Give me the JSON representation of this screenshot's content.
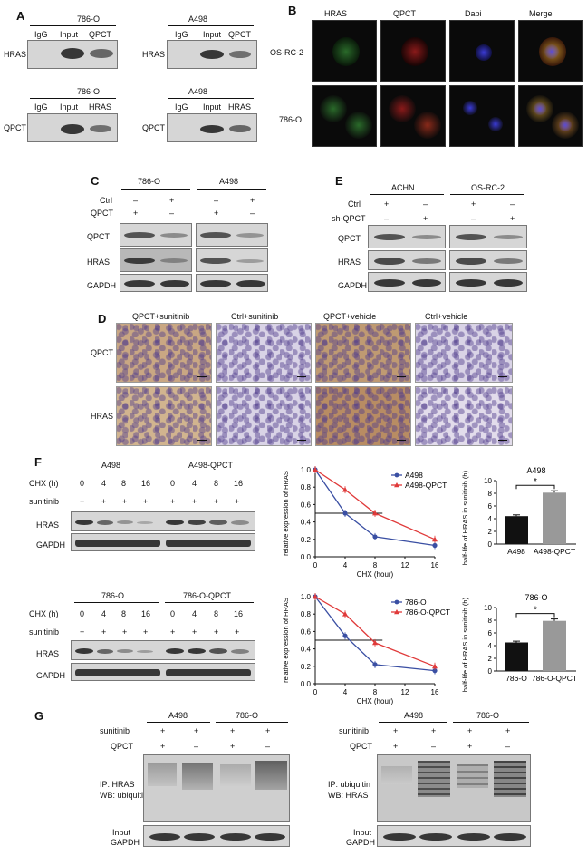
{
  "panel_labels": {
    "A": "A",
    "B": "B",
    "C": "C",
    "D": "D",
    "E": "E",
    "F": "F",
    "G": "G"
  },
  "panelA": {
    "tl": {
      "cell": "786-O",
      "lanes": [
        "IgG",
        "Input",
        "QPCT"
      ],
      "blot": "HRAS"
    },
    "tr": {
      "cell": "A498",
      "lanes": [
        "IgG",
        "Input",
        "QPCT"
      ],
      "blot": "HRAS"
    },
    "bl": {
      "cell": "786-O",
      "lanes": [
        "IgG",
        "Input",
        "HRAS"
      ],
      "blot": "QPCT"
    },
    "br": {
      "cell": "A498",
      "lanes": [
        "IgG",
        "Input",
        "HRAS"
      ],
      "blot": "QPCT"
    }
  },
  "panelB": {
    "columns": [
      "HRAS",
      "QPCT",
      "Dapi",
      "Merge"
    ],
    "rows": [
      "OS-RC-2",
      "786-O"
    ]
  },
  "panelC": {
    "groups": [
      "786-O",
      "A498"
    ],
    "row_labels": [
      "Ctrl",
      "QPCT"
    ],
    "row_signs": [
      [
        "–",
        "+",
        "–",
        "+"
      ],
      [
        "+",
        "–",
        "+",
        "–"
      ]
    ],
    "blots": [
      "QPCT",
      "HRAS",
      "GAPDH"
    ]
  },
  "panelE": {
    "groups": [
      "ACHN",
      "OS-RC-2"
    ],
    "row_labels": [
      "Ctrl",
      "sh-QPCT"
    ],
    "row_signs": [
      [
        "+",
        "–",
        "+",
        "–"
      ],
      [
        "–",
        "+",
        "–",
        "+"
      ]
    ],
    "blots": [
      "QPCT",
      "HRAS",
      "GAPDH"
    ]
  },
  "panelD": {
    "columns": [
      "QPCT+sunitinib",
      "Ctrl+sunitinib",
      "QPCT+vehicle",
      "Ctrl+vehicle"
    ],
    "rows": [
      "QPCT",
      "HRAS"
    ]
  },
  "panelF": {
    "top": {
      "groups": [
        "A498",
        "A498-QPCT"
      ],
      "chx_label": "CHX (h)",
      "chx": [
        "0",
        "4",
        "8",
        "16",
        "0",
        "4",
        "8",
        "16"
      ],
      "sun_label": "sunitinib",
      "sun": [
        "+",
        "+",
        "+",
        "+",
        "+",
        "+",
        "+",
        "+"
      ],
      "blots": [
        "HRAS",
        "GAPDH"
      ]
    },
    "bottom": {
      "groups": [
        "786-O",
        "786-O-QPCT"
      ],
      "chx_label": "CHX (h)",
      "chx": [
        "0",
        "4",
        "8",
        "16",
        "0",
        "4",
        "8",
        "16"
      ],
      "sun_label": "sunitinib",
      "sun": [
        "+",
        "+",
        "+",
        "+",
        "+",
        "+",
        "+",
        "+"
      ],
      "blots": [
        "HRAS",
        "GAPDH"
      ]
    }
  },
  "panelG": {
    "left": {
      "groups": [
        "A498",
        "786-O"
      ],
      "row_labels": [
        "sunitinib",
        "QPCT"
      ],
      "row_signs": [
        [
          "+",
          "+",
          "+",
          "+"
        ],
        [
          "+",
          "–",
          "+",
          "–"
        ]
      ],
      "ip": "IP: HRAS",
      "wb": "WB: ubiquitin",
      "input_l1": "Input",
      "input_l2": "GAPDH"
    },
    "right": {
      "groups": [
        "A498",
        "786-O"
      ],
      "row_labels": [
        "sunitinib",
        "QPCT"
      ],
      "row_signs": [
        [
          "+",
          "+",
          "+",
          "+"
        ],
        [
          "+",
          "–",
          "+",
          "–"
        ]
      ],
      "ip": "IP: ubiquitin",
      "wb": "WB: HRAS",
      "input_l1": "Input",
      "input_l2": "GAPDH"
    }
  },
  "colors": {
    "blue": "#3a4fa3",
    "red": "#e03a3a",
    "bar_black": "#111111",
    "bar_gray": "#999999"
  },
  "chart_data": [
    {
      "type": "line",
      "xlabel": "CHX (hour)",
      "ylabel": "relative expression of HRAS",
      "x": [
        0,
        4,
        8,
        16
      ],
      "xticks": [
        "0",
        "4",
        "8",
        "12",
        "16"
      ],
      "yticks": [
        "0.0",
        "0.2",
        "0.4",
        "0.6",
        "0.8",
        "1.0"
      ],
      "xlim": [
        0,
        16
      ],
      "ylim": [
        0,
        1.0
      ],
      "halfline": 0.5,
      "series": [
        {
          "name": "A498",
          "values": [
            1.0,
            0.5,
            0.23,
            0.13
          ],
          "color": "#3a4fa3",
          "marker": "circle"
        },
        {
          "name": "A498-QPCT",
          "values": [
            1.0,
            0.77,
            0.5,
            0.2
          ],
          "color": "#e03a3a",
          "marker": "triangle"
        }
      ]
    },
    {
      "type": "bar",
      "title": "A498",
      "ylabel": "half-life of HRAS in sunitinib (h)",
      "categories": [
        "A498",
        "A498-QPCT"
      ],
      "values": [
        4.4,
        8.1
      ],
      "errors": [
        0.2,
        0.3
      ],
      "yticks": [
        "0",
        "2",
        "4",
        "6",
        "8",
        "10"
      ],
      "ylim": [
        0,
        10
      ],
      "sig": "*"
    },
    {
      "type": "line",
      "xlabel": "CHX (hour)",
      "ylabel": "relative expression of HRAS",
      "x": [
        0,
        4,
        8,
        16
      ],
      "xticks": [
        "0",
        "4",
        "8",
        "12",
        "16"
      ],
      "yticks": [
        "0.0",
        "0.2",
        "0.4",
        "0.6",
        "0.8",
        "1.0"
      ],
      "xlim": [
        0,
        16
      ],
      "ylim": [
        0,
        1.0
      ],
      "halfline": 0.5,
      "series": [
        {
          "name": "786-O",
          "values": [
            1.0,
            0.55,
            0.22,
            0.15
          ],
          "color": "#3a4fa3",
          "marker": "circle"
        },
        {
          "name": "786-O-QPCT",
          "values": [
            1.0,
            0.8,
            0.47,
            0.2
          ],
          "color": "#e03a3a",
          "marker": "triangle"
        }
      ]
    },
    {
      "type": "bar",
      "title": "786-O",
      "ylabel": "half-life of HRAS in sunitinib (h)",
      "categories": [
        "786-O",
        "786-O-QPCT"
      ],
      "values": [
        4.5,
        7.9
      ],
      "errors": [
        0.2,
        0.3
      ],
      "yticks": [
        "0",
        "2",
        "4",
        "6",
        "8",
        "10"
      ],
      "ylim": [
        0,
        10
      ],
      "sig": "*"
    }
  ]
}
